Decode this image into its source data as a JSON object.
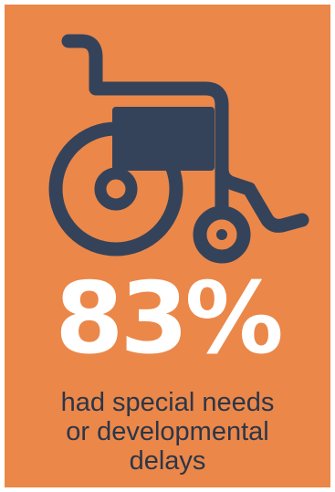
{
  "infographic": {
    "icon": "wheelchair-icon",
    "background_color": "#eb8749",
    "icon_color": "#34435a",
    "stat_value": "83%",
    "caption_lines": [
      "had special needs",
      "or developmental",
      "delays"
    ]
  }
}
